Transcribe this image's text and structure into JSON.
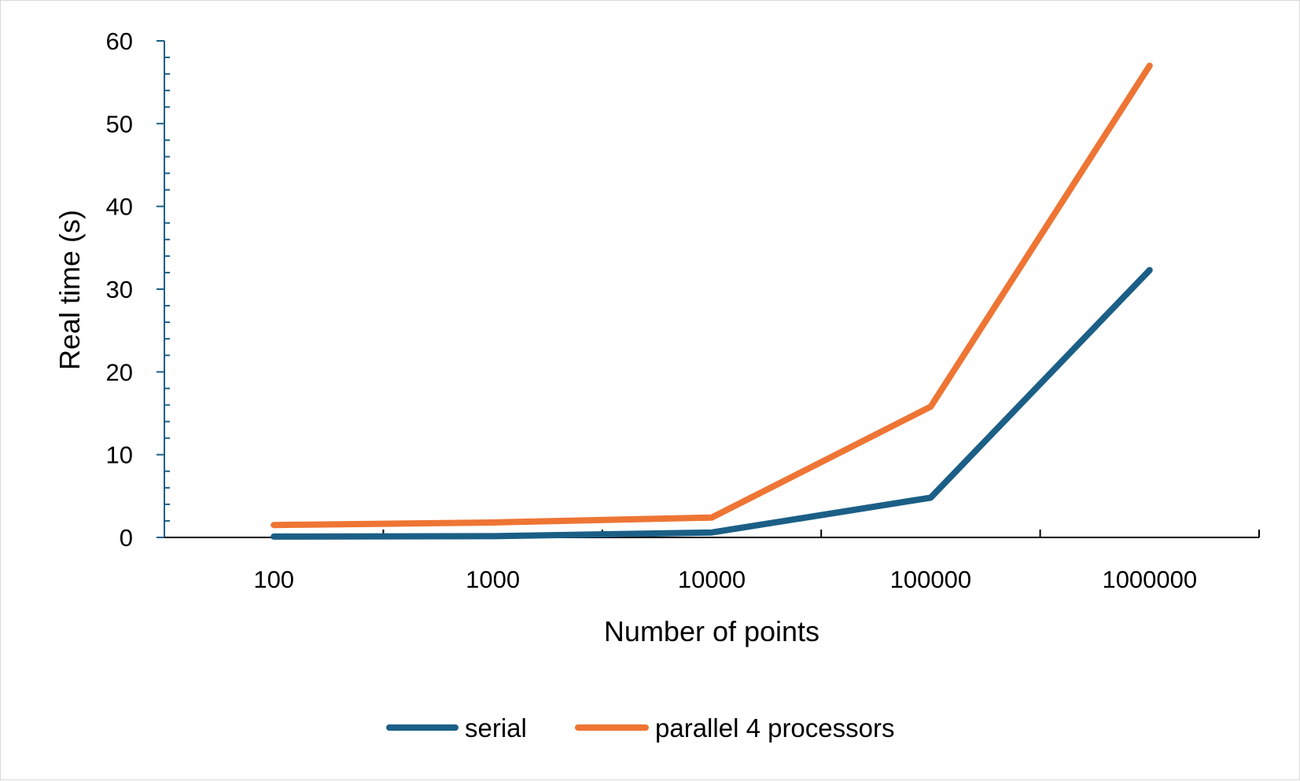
{
  "chart_data": {
    "type": "line",
    "title": "",
    "xlabel": "Number of points",
    "ylabel": "Real time (s)",
    "categories": [
      "100",
      "1000",
      "10000",
      "100000",
      "1000000"
    ],
    "ylim": [
      0,
      60
    ],
    "y_ticks": [
      "0",
      "10",
      "20",
      "30",
      "40",
      "50",
      "60"
    ],
    "grid": false,
    "legend_position": "bottom",
    "series": [
      {
        "name": "serial",
        "color": "#1b5f86",
        "values": [
          0.1,
          0.15,
          0.6,
          4.8,
          32.3
        ]
      },
      {
        "name": "parallel 4 processors",
        "color": "#ee7534",
        "values": [
          1.5,
          1.8,
          2.4,
          15.8,
          57.0
        ]
      }
    ]
  }
}
